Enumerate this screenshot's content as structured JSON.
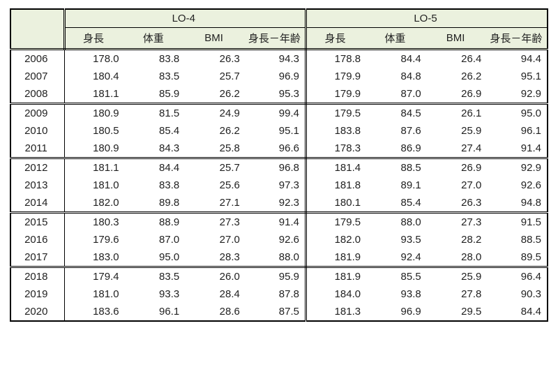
{
  "table": {
    "type": "table",
    "background_color": "#ffffff",
    "header_bg": "#ebf1de",
    "text_color": "#222222",
    "font_family": "Yu Gothic / Meiryo",
    "label_fontsize": 15,
    "outer_border_color": "#000000",
    "double_line_width": 3,
    "thin_line_width": 1,
    "row_group_size": 3,
    "groups": [
      {
        "label": "LO-4"
      },
      {
        "label": "LO-5"
      }
    ],
    "sub_columns": [
      "身長",
      "体重",
      "BMI",
      "身長－年齢"
    ],
    "years": [
      "2006",
      "2007",
      "2008",
      "2009",
      "2010",
      "2011",
      "2012",
      "2013",
      "2014",
      "2015",
      "2016",
      "2017",
      "2018",
      "2019",
      "2020"
    ],
    "lo4": [
      [
        "178.0",
        "83.8",
        "26.3",
        "94.3"
      ],
      [
        "180.4",
        "83.5",
        "25.7",
        "96.9"
      ],
      [
        "181.1",
        "85.9",
        "26.2",
        "95.3"
      ],
      [
        "180.9",
        "81.5",
        "24.9",
        "99.4"
      ],
      [
        "180.5",
        "85.4",
        "26.2",
        "95.1"
      ],
      [
        "180.9",
        "84.3",
        "25.8",
        "96.6"
      ],
      [
        "181.1",
        "84.4",
        "25.7",
        "96.8"
      ],
      [
        "181.0",
        "83.8",
        "25.6",
        "97.3"
      ],
      [
        "182.0",
        "89.8",
        "27.1",
        "92.3"
      ],
      [
        "180.3",
        "88.9",
        "27.3",
        "91.4"
      ],
      [
        "179.6",
        "87.0",
        "27.0",
        "92.6"
      ],
      [
        "183.0",
        "95.0",
        "28.3",
        "88.0"
      ],
      [
        "179.4",
        "83.5",
        "26.0",
        "95.9"
      ],
      [
        "181.0",
        "93.3",
        "28.4",
        "87.8"
      ],
      [
        "183.6",
        "96.1",
        "28.6",
        "87.5"
      ]
    ],
    "lo5": [
      [
        "178.8",
        "84.4",
        "26.4",
        "94.4"
      ],
      [
        "179.9",
        "84.8",
        "26.2",
        "95.1"
      ],
      [
        "179.9",
        "87.0",
        "26.9",
        "92.9"
      ],
      [
        "179.5",
        "84.5",
        "26.1",
        "95.0"
      ],
      [
        "183.8",
        "87.6",
        "25.9",
        "96.1"
      ],
      [
        "178.3",
        "86.9",
        "27.4",
        "91.4"
      ],
      [
        "181.4",
        "88.5",
        "26.9",
        "92.9"
      ],
      [
        "181.8",
        "89.1",
        "27.0",
        "92.6"
      ],
      [
        "180.1",
        "85.4",
        "26.3",
        "94.8"
      ],
      [
        "179.5",
        "88.0",
        "27.3",
        "91.5"
      ],
      [
        "182.0",
        "93.5",
        "28.2",
        "88.5"
      ],
      [
        "181.9",
        "92.4",
        "28.0",
        "89.5"
      ],
      [
        "181.9",
        "85.5",
        "25.9",
        "96.4"
      ],
      [
        "184.0",
        "93.8",
        "27.8",
        "90.3"
      ],
      [
        "181.3",
        "96.9",
        "29.5",
        "84.4"
      ]
    ]
  }
}
